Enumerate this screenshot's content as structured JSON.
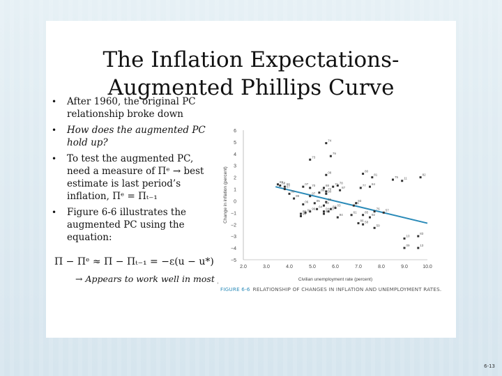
{
  "slide": {
    "title_line1": "The Inflation Expectations-",
    "title_line2": "Augmented Phillips Curve",
    "bullets": [
      {
        "text": "After 1960, the original PC relationship broke down"
      },
      {
        "text": "How does the augmented PC hold up?"
      },
      {
        "text": "To test the augmented PC, need a measure of Πᵉ → best estimate is last period’s inflation, Πᵉ = Πₜ₋₁"
      },
      {
        "text": "Figure 6-6 illustrates the augmented PC using the equation:"
      }
    ],
    "equation": "Π − Πᵉ ≈ Π − Πₜ₋₁ = −ε(u − u*)",
    "note": "→ Appears to work well in most periods",
    "page_number": "6-13"
  },
  "figure": {
    "caption_label": "FIGURE 6-6",
    "caption_text": "RELATIONSHIP OF CHANGES IN INFLATION AND UNEMPLOYMENT RATES."
  },
  "chart_data": {
    "type": "scatter",
    "xlabel": "Civilian unemployment rate (percent)",
    "ylabel": "Change in inflation (percent)",
    "xlim": [
      2.0,
      10.0
    ],
    "ylim": [
      -5,
      6
    ],
    "xticks": [
      "2.0",
      "3.0",
      "4.0",
      "5.0",
      "6.0",
      "7.0",
      "8.0",
      "9.0",
      "10.0"
    ],
    "yticks": [
      "6",
      "5",
      "4",
      "3",
      "2",
      "1",
      "0",
      "−1",
      "−2",
      "−3",
      "−4",
      "−5"
    ],
    "trend_line": {
      "x": [
        3.4,
        10.0
      ],
      "y": [
        1.2,
        -1.9
      ]
    },
    "colors": {
      "points": "#333333",
      "trend": "#2a8ab8",
      "labels": "#555555"
    },
    "points": [
      {
        "label": "74",
        "x": 5.6,
        "y": 4.9
      },
      {
        "label": "73",
        "x": 4.9,
        "y": 3.5
      },
      {
        "label": "79",
        "x": 5.8,
        "y": 3.8
      },
      {
        "label": "80",
        "x": 7.2,
        "y": 2.3
      },
      {
        "label": "81",
        "x": 7.6,
        "y": 2.0
      },
      {
        "label": "68",
        "x": 3.6,
        "y": 1.3
      },
      {
        "label": "66",
        "x": 3.8,
        "y": 1.2
      },
      {
        "label": "67",
        "x": 3.8,
        "y": 1.0
      },
      {
        "label": "69",
        "x": 3.5,
        "y": 1.4
      },
      {
        "label": "72",
        "x": 5.6,
        "y": 0.8
      },
      {
        "label": "75",
        "x": 8.5,
        "y": 1.8
      },
      {
        "label": "82",
        "x": 9.7,
        "y": 2.0
      },
      {
        "label": "84",
        "x": 7.5,
        "y": 1.2
      },
      {
        "label": "77",
        "x": 7.1,
        "y": 1.1
      },
      {
        "label": "78",
        "x": 6.1,
        "y": 1.3
      },
      {
        "label": "70",
        "x": 4.9,
        "y": 1.1
      },
      {
        "label": "88",
        "x": 5.5,
        "y": 1.1
      },
      {
        "label": "89",
        "x": 5.3,
        "y": 0.7
      },
      {
        "label": "90",
        "x": 5.6,
        "y": 0.6
      },
      {
        "label": "00",
        "x": 4.0,
        "y": 0.6
      },
      {
        "label": "71",
        "x": 5.9,
        "y": 1.2
      },
      {
        "label": "97",
        "x": 4.9,
        "y": 0.4
      },
      {
        "label": "99",
        "x": 4.2,
        "y": 0.2
      },
      {
        "label": "87",
        "x": 6.2,
        "y": 0.9
      },
      {
        "label": "06",
        "x": 4.6,
        "y": -0.3
      },
      {
        "label": "05",
        "x": 5.1,
        "y": -0.2
      },
      {
        "label": "95",
        "x": 5.6,
        "y": -0.1
      },
      {
        "label": "62",
        "x": 5.5,
        "y": -0.4
      },
      {
        "label": "04",
        "x": 5.5,
        "y": -0.9
      },
      {
        "label": "03",
        "x": 6.0,
        "y": -0.6
      },
      {
        "label": "91",
        "x": 6.8,
        "y": -0.4
      },
      {
        "label": "93",
        "x": 6.9,
        "y": -0.2
      },
      {
        "label": "02",
        "x": 5.8,
        "y": -0.7
      },
      {
        "label": "94",
        "x": 6.1,
        "y": -1.4
      },
      {
        "label": "64",
        "x": 5.2,
        "y": -0.7
      },
      {
        "label": "63",
        "x": 5.7,
        "y": -0.9
      },
      {
        "label": "96",
        "x": 4.9,
        "y": -0.9
      },
      {
        "label": "01",
        "x": 4.7,
        "y": -1.0
      },
      {
        "label": "60",
        "x": 5.5,
        "y": -1.1
      },
      {
        "label": "65",
        "x": 4.5,
        "y": -1.1
      },
      {
        "label": "98",
        "x": 4.5,
        "y": -1.3
      },
      {
        "label": "76",
        "x": 7.7,
        "y": -0.9
      },
      {
        "label": "61",
        "x": 6.7,
        "y": -1.2
      },
      {
        "label": "92",
        "x": 7.5,
        "y": -1.4
      },
      {
        "label": "85",
        "x": 7.2,
        "y": -1.2
      },
      {
        "label": "86",
        "x": 7.0,
        "y": -1.9
      },
      {
        "label": "58",
        "x": 7.2,
        "y": -2.0
      },
      {
        "label": "59",
        "x": 7.7,
        "y": -2.3
      },
      {
        "label": "57",
        "x": 8.1,
        "y": -1.0
      },
      {
        "label": "83",
        "x": 9.6,
        "y": -3.0
      },
      {
        "label": "13",
        "x": 9.6,
        "y": -4.0
      },
      {
        "label": "10",
        "x": 9.0,
        "y": -3.2
      },
      {
        "label": "09",
        "x": 9.0,
        "y": -4.0
      },
      {
        "label": "11",
        "x": 8.9,
        "y": 1.7
      },
      {
        "label": "08",
        "x": 5.6,
        "y": 2.2
      },
      {
        "label": "07",
        "x": 4.6,
        "y": 1.2
      }
    ]
  }
}
